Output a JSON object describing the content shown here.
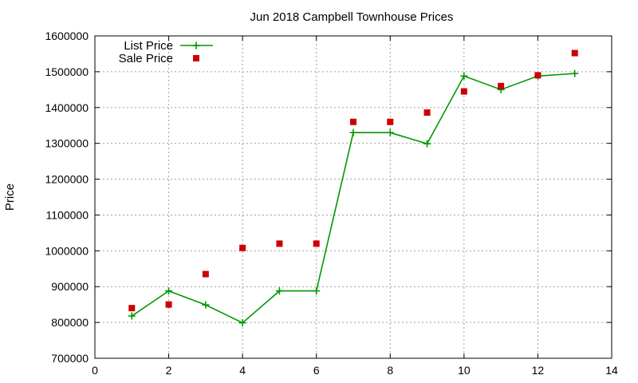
{
  "chart_data": {
    "type": "line",
    "title": "Jun 2018 Campbell Townhouse Prices",
    "xlabel": "",
    "ylabel": "Price",
    "xlim": [
      0,
      14
    ],
    "ylim": [
      700000,
      1600000
    ],
    "x_ticks": [
      0,
      2,
      4,
      6,
      8,
      10,
      12,
      14
    ],
    "y_ticks": [
      700000,
      800000,
      900000,
      1000000,
      1100000,
      1200000,
      1300000,
      1400000,
      1500000,
      1600000
    ],
    "grid": true,
    "legend_position": "top-left",
    "series": [
      {
        "name": "List Price",
        "style": "line-with-plus-markers",
        "color": "#009900",
        "x": [
          1,
          2,
          3,
          4,
          5,
          6,
          7,
          8,
          9,
          10,
          11,
          12,
          13
        ],
        "values": [
          818000,
          888000,
          849000,
          799000,
          888000,
          888000,
          1330000,
          1330000,
          1299000,
          1488000,
          1450000,
          1488000,
          1495000
        ]
      },
      {
        "name": "Sale Price",
        "style": "square-markers",
        "color": "#cc0000",
        "x": [
          1,
          2,
          3,
          4,
          5,
          6,
          7,
          8,
          9,
          10,
          11,
          12,
          13
        ],
        "values": [
          840000,
          850000,
          935000,
          1008000,
          1020000,
          1020000,
          1360000,
          1360000,
          1386000,
          1445000,
          1460000,
          1490000,
          1552000
        ]
      }
    ]
  }
}
